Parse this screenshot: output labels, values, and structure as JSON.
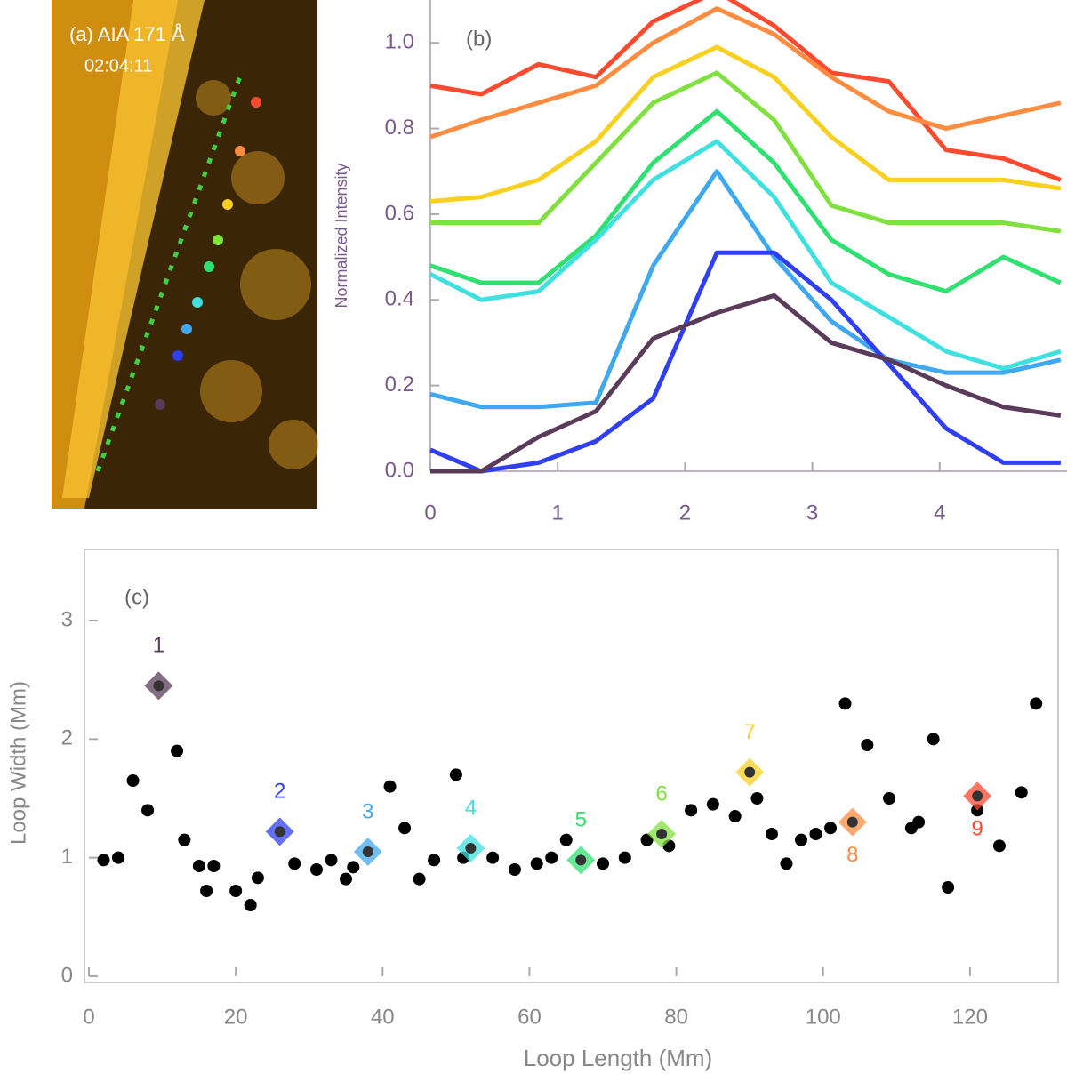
{
  "panel_a": {
    "label": "(a) AIA 171 Å",
    "time": "02:04:11"
  },
  "chart_data": [
    {
      "type": "line",
      "title": "(b)",
      "ylabel": "Normalized Intensity",
      "x": [
        0,
        0.4,
        0.85,
        1.3,
        1.75,
        2.25,
        2.7,
        3.15,
        3.6,
        4.05,
        4.5,
        4.95
      ],
      "xlim": [
        0,
        5
      ],
      "xticks": [
        0,
        1,
        2,
        3,
        4
      ],
      "ylim": [
        0,
        1.1
      ],
      "yticks": [
        {
          "value": 0,
          "label": "0.0"
        },
        {
          "value": 0.2,
          "label": "0.2"
        },
        {
          "value": 0.4,
          "label": "0.4"
        },
        {
          "value": 0.6,
          "label": "0.6"
        },
        {
          "value": 0.8,
          "label": "0.8"
        },
        {
          "value": 1,
          "label": "1.0"
        }
      ],
      "series": [
        {
          "color": "#ff4a30",
          "values": [
            0.9,
            0.88,
            0.95,
            0.92,
            1.05,
            1.12,
            1.04,
            0.93,
            0.91,
            0.75,
            0.73,
            0.68
          ]
        },
        {
          "color": "#ff8c40",
          "values": [
            0.78,
            0.82,
            0.86,
            0.9,
            1.0,
            1.08,
            1.02,
            0.92,
            0.84,
            0.8,
            0.83,
            0.86
          ]
        },
        {
          "color": "#f8d020",
          "values": [
            0.63,
            0.64,
            0.68,
            0.77,
            0.92,
            0.99,
            0.92,
            0.78,
            0.68,
            0.68,
            0.68,
            0.66
          ]
        },
        {
          "color": "#80e040",
          "values": [
            0.58,
            0.58,
            0.58,
            0.72,
            0.86,
            0.93,
            0.82,
            0.62,
            0.58,
            0.58,
            0.58,
            0.56
          ]
        },
        {
          "color": "#30e070",
          "values": [
            0.48,
            0.44,
            0.44,
            0.55,
            0.72,
            0.84,
            0.72,
            0.54,
            0.46,
            0.42,
            0.5,
            0.44
          ]
        },
        {
          "color": "#40e0e0",
          "values": [
            0.46,
            0.4,
            0.42,
            0.54,
            0.68,
            0.77,
            0.64,
            0.44,
            0.36,
            0.28,
            0.24,
            0.28
          ]
        },
        {
          "color": "#40a8f0",
          "values": [
            0.18,
            0.15,
            0.15,
            0.16,
            0.48,
            0.7,
            0.5,
            0.35,
            0.26,
            0.23,
            0.23,
            0.26
          ]
        },
        {
          "color": "#3040f0",
          "values": [
            0.05,
            0.0,
            0.02,
            0.07,
            0.17,
            0.51,
            0.51,
            0.4,
            0.25,
            0.1,
            0.02,
            0.02
          ]
        },
        {
          "color": "#5a3c5a",
          "values": [
            0.0,
            0.0,
            0.08,
            0.14,
            0.31,
            0.37,
            0.41,
            0.3,
            0.26,
            0.2,
            0.15,
            0.13
          ]
        }
      ]
    },
    {
      "type": "scatter",
      "title": "(c)",
      "xlabel": "Loop Length (Mm)",
      "ylabel": "Loop Width (Mm)",
      "xlim": [
        0,
        132
      ],
      "xticks": [
        0,
        20,
        40,
        60,
        80,
        100,
        120
      ],
      "ylim": [
        0,
        3.6
      ],
      "yticks": [
        0,
        1,
        2,
        3
      ],
      "series": [
        {
          "color": "#000000",
          "x": [
            2,
            4,
            6,
            8,
            12,
            13,
            15,
            17,
            16,
            20,
            22,
            23,
            28,
            31,
            33,
            35,
            36,
            41,
            43,
            45,
            47,
            50,
            51,
            55,
            58,
            61,
            63,
            65,
            70,
            73,
            76,
            79,
            82,
            85,
            88,
            91,
            93,
            95,
            97,
            99,
            101,
            103,
            106,
            109,
            112,
            113,
            115,
            117,
            121,
            124,
            127,
            129
          ],
          "y": [
            0.98,
            1.0,
            1.65,
            1.4,
            1.9,
            1.15,
            0.93,
            0.93,
            0.72,
            0.72,
            0.6,
            0.83,
            0.95,
            0.9,
            0.98,
            0.82,
            0.92,
            1.6,
            1.25,
            0.82,
            0.98,
            1.7,
            1.0,
            1.0,
            0.9,
            0.95,
            1.0,
            1.15,
            0.95,
            1.0,
            1.15,
            1.1,
            1.4,
            1.45,
            1.35,
            1.5,
            1.2,
            0.95,
            1.15,
            1.2,
            1.25,
            2.3,
            1.95,
            1.5,
            1.25,
            1.3,
            2.0,
            0.75,
            1.4,
            1.1,
            1.55,
            2.3
          ]
        },
        {
          "color": "#5a3c5a",
          "x": [
            9.5
          ],
          "y": [
            2.45
          ],
          "label": "1"
        },
        {
          "color": "#3040f0",
          "x": [
            26
          ],
          "y": [
            1.22
          ],
          "label": "2"
        },
        {
          "color": "#40a8f0",
          "x": [
            38
          ],
          "y": [
            1.05
          ],
          "label": "3"
        },
        {
          "color": "#40e0e0",
          "x": [
            52
          ],
          "y": [
            1.08
          ],
          "label": "4"
        },
        {
          "color": "#30e070",
          "x": [
            67
          ],
          "y": [
            0.98
          ],
          "label": "5"
        },
        {
          "color": "#80e040",
          "x": [
            78
          ],
          "y": [
            1.2
          ],
          "label": "6"
        },
        {
          "color": "#f8d020",
          "x": [
            90
          ],
          "y": [
            1.72
          ],
          "label": "7"
        },
        {
          "color": "#ff8c40",
          "x": [
            104
          ],
          "y": [
            1.3
          ],
          "label": "8"
        },
        {
          "color": "#ff4a30",
          "x": [
            121
          ],
          "y": [
            1.52
          ],
          "label": "9"
        }
      ]
    }
  ]
}
